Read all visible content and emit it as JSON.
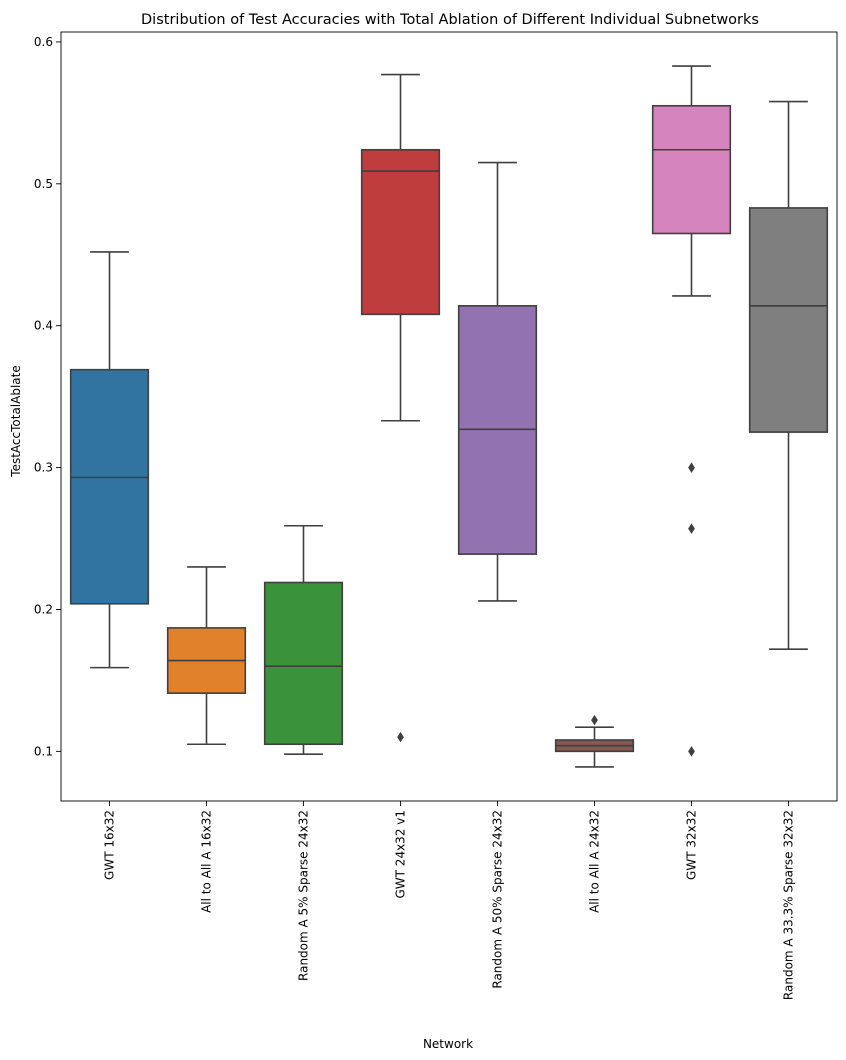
{
  "chart_data": {
    "type": "boxplot",
    "title": "Distribution of Test Accuracies with Total Ablation of Different Individual Subnetworks",
    "xlabel": "Network",
    "ylabel": "TestAccTotalAblate",
    "ylim": [
      0.065,
      0.607
    ],
    "yticks": [
      0.1,
      0.2,
      0.3,
      0.4,
      0.5,
      0.6
    ],
    "ytick_labels": [
      "0.1",
      "0.2",
      "0.3",
      "0.4",
      "0.5",
      "0.6"
    ],
    "grid": false,
    "categories": [
      "GWT 16x32",
      "All to All A 16x32",
      "Random A 5% Sparse 24x32",
      "GWT 24x32 v1",
      "Random A 50% Sparse 24x32",
      "All to All A 24x32",
      "GWT 32x32",
      "Random A 33.3% Sparse 32x32"
    ],
    "boxes": [
      {
        "name": "GWT 16x32",
        "color": "#3274a1",
        "whisker_low": 0.159,
        "q1": 0.204,
        "median": 0.293,
        "q3": 0.369,
        "whisker_high": 0.452,
        "outliers": []
      },
      {
        "name": "All to All A 16x32",
        "color": "#e1812c",
        "whisker_low": 0.105,
        "q1": 0.141,
        "median": 0.164,
        "q3": 0.187,
        "whisker_high": 0.23,
        "outliers": []
      },
      {
        "name": "Random A 5% Sparse 24x32",
        "color": "#3a923a",
        "whisker_low": 0.098,
        "q1": 0.105,
        "median": 0.16,
        "q3": 0.219,
        "whisker_high": 0.259,
        "outliers": []
      },
      {
        "name": "GWT 24x32 v1",
        "color": "#c03d3e",
        "whisker_low": 0.333,
        "q1": 0.408,
        "median": 0.509,
        "q3": 0.524,
        "whisker_high": 0.577,
        "outliers": [
          0.11
        ]
      },
      {
        "name": "Random A 50% Sparse 24x32",
        "color": "#9372b2",
        "whisker_low": 0.206,
        "q1": 0.239,
        "median": 0.327,
        "q3": 0.414,
        "whisker_high": 0.515,
        "outliers": []
      },
      {
        "name": "All to All A 24x32",
        "color": "#845b53",
        "whisker_low": 0.089,
        "q1": 0.1,
        "median": 0.104,
        "q3": 0.108,
        "whisker_high": 0.117,
        "outliers": [
          0.122
        ]
      },
      {
        "name": "GWT 32x32",
        "color": "#d684bd",
        "whisker_low": 0.421,
        "q1": 0.465,
        "median": 0.524,
        "q3": 0.555,
        "whisker_high": 0.583,
        "outliers": [
          0.3,
          0.257,
          0.1
        ]
      },
      {
        "name": "Random A 33.3% Sparse 32x32",
        "color": "#7f7f7f",
        "whisker_low": 0.172,
        "q1": 0.325,
        "median": 0.414,
        "q3": 0.483,
        "whisker_high": 0.558,
        "outliers": []
      }
    ]
  }
}
